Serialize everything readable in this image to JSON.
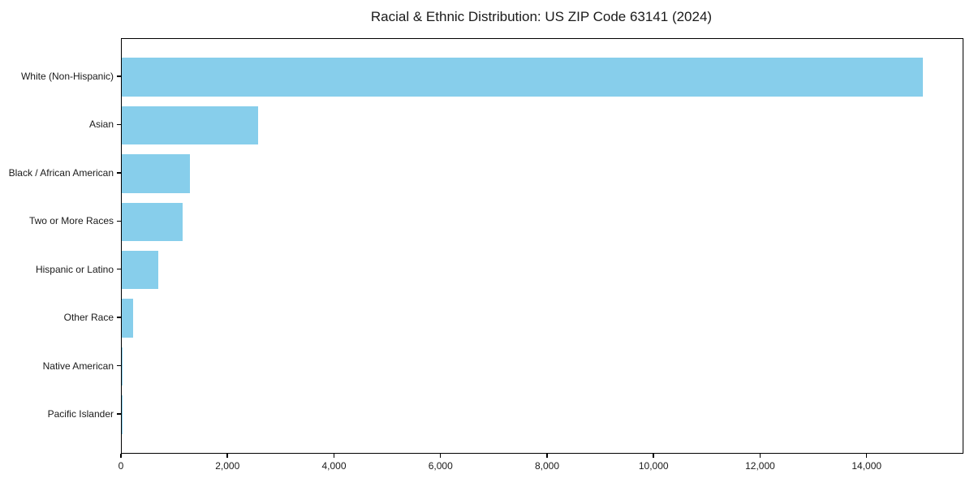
{
  "title": "Racial & Ethnic Distribution: US ZIP Code 63141 (2024)",
  "chart_data": {
    "type": "bar",
    "orientation": "horizontal",
    "title": "Racial & Ethnic Distribution: US ZIP Code 63141 (2024)",
    "xlabel": "",
    "ylabel": "",
    "categories": [
      "White (Non-Hispanic)",
      "Asian",
      "Black / African American",
      "Two or More Races",
      "Hispanic or Latino",
      "Other Race",
      "Native American",
      "Pacific Islander"
    ],
    "values": [
      15035,
      2560,
      1280,
      1140,
      690,
      210,
      10,
      5
    ],
    "xlim": [
      0,
      15787
    ],
    "x_ticks": [
      0,
      2000,
      4000,
      6000,
      8000,
      10000,
      12000,
      14000
    ],
    "x_tick_labels": [
      "0",
      "2,000",
      "4,000",
      "6,000",
      "8,000",
      "10,000",
      "12,000",
      "14,000"
    ],
    "bar_color": "#87CEEB",
    "axis_color": "#000000",
    "grid": false,
    "legend": "none"
  }
}
